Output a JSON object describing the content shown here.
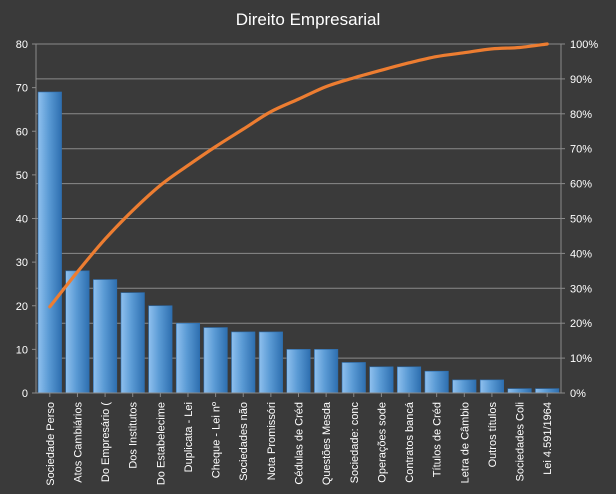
{
  "chart_data": {
    "type": "bar",
    "title": "Direito Empresarial",
    "categories": [
      "Sociedade Perso",
      "Atos Cambiários",
      "Do Empresário (",
      "Dos Institutos",
      "Do Estabelecime",
      "Duplicata - Lei",
      "Cheque - Lei nº",
      "Sociedades não",
      "Nota Promissóri",
      "Cédulas de Créd",
      "Questões Mesda",
      "Sociedade: conc",
      "Operações sode",
      "Contratos bancá",
      "Títulos de Créd",
      "Letra de Câmbio",
      "Outros títulos",
      "Sociedades Coli",
      "Lei 4.591/1964"
    ],
    "series": [
      {
        "type": "bar",
        "axis": "left",
        "values": [
          69,
          28,
          26,
          23,
          20,
          16,
          15,
          14,
          14,
          10,
          10,
          7,
          6,
          6,
          5,
          3,
          3,
          1,
          1
        ]
      },
      {
        "type": "line",
        "axis": "right",
        "values": [
          24.7,
          34.7,
          44.1,
          52.3,
          59.5,
          65.2,
          70.6,
          75.6,
          80.6,
          84.2,
          87.8,
          90.3,
          92.5,
          94.6,
          96.4,
          97.5,
          98.6,
          99.0,
          100.0
        ]
      }
    ],
    "ylim": [
      0,
      80
    ],
    "yticks": [
      "0",
      "10",
      "20",
      "30",
      "40",
      "50",
      "60",
      "70",
      "80"
    ],
    "y2lim": [
      0,
      100
    ],
    "y2ticks": [
      "0%",
      "10%",
      "20%",
      "30%",
      "40%",
      "50%",
      "60%",
      "70%",
      "80%",
      "90%",
      "100%"
    ],
    "grid": true,
    "legend": "none",
    "colors": {
      "background": "#3a3a3a",
      "bar": "#5b9bd5",
      "bar_light": "#8fc0ee",
      "bar_dark": "#2e6fb0",
      "line": "#ed7d31",
      "grid": "#8a8a8a",
      "text": "#ffffff"
    }
  }
}
